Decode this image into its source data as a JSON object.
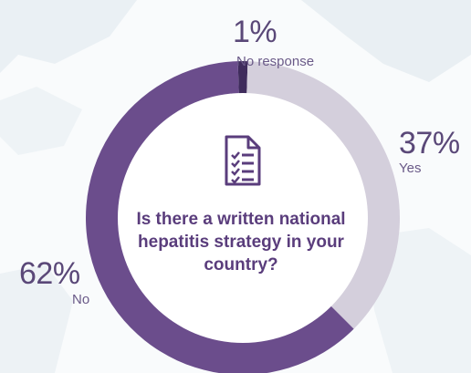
{
  "chart_data": {
    "type": "pie",
    "variant": "donut",
    "center_text": "Is there a written national hepatitis strategy in your country?",
    "center_icon": "checklist-document-icon",
    "slices": [
      {
        "label": "No response",
        "value": 1,
        "value_label": "1%",
        "color": "#3f2c5c"
      },
      {
        "label": "Yes",
        "value": 37,
        "value_label": "37%",
        "color": "#d4cfdc"
      },
      {
        "label": "No",
        "value": 62,
        "value_label": "62%",
        "color": "#6b4d8c"
      }
    ]
  },
  "colors": {
    "background": "#f9fbfc",
    "map_shapes": "#e9eff3",
    "inner_circle": "#ffffff",
    "text_primary": "#5a3d7c"
  }
}
